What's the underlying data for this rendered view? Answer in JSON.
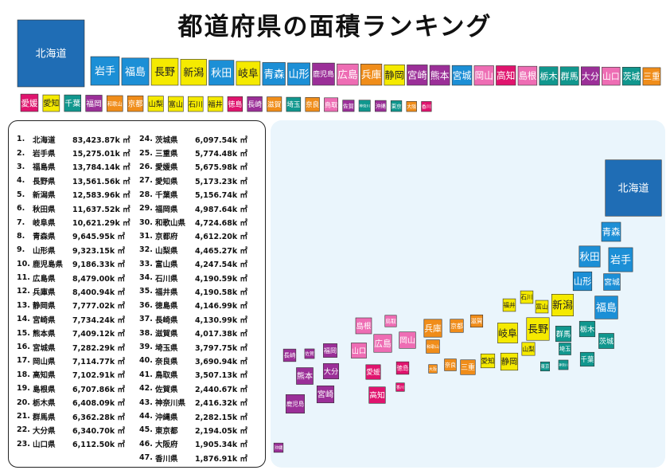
{
  "title": "都道府県の面積ランキング",
  "chart_data": {
    "type": "table",
    "unit": "k ㎡",
    "entries": [
      {
        "rank": 1,
        "rank_label": "1.",
        "name": "北海道",
        "short": "北海道",
        "area_label": "83,423.87k ㎡",
        "value": 83423.87,
        "color": "#1f6db5"
      },
      {
        "rank": 2,
        "rank_label": "2.",
        "name": "岩手県",
        "short": "岩手",
        "area_label": "15,275.01k ㎡",
        "value": 15275.01,
        "color": "#1c8fd6"
      },
      {
        "rank": 3,
        "rank_label": "3.",
        "name": "福島県",
        "short": "福島",
        "area_label": "13,784.14k ㎡",
        "value": 13784.14,
        "color": "#1c8fd6"
      },
      {
        "rank": 4,
        "rank_label": "4.",
        "name": "長野県",
        "short": "長野",
        "area_label": "13,561.56k ㎡",
        "value": 13561.56,
        "color": "#f5ea00"
      },
      {
        "rank": 5,
        "rank_label": "5.",
        "name": "新潟県",
        "short": "新潟",
        "area_label": "12,583.96k ㎡",
        "value": 12583.96,
        "color": "#f5ea00"
      },
      {
        "rank": 6,
        "rank_label": "6.",
        "name": "秋田県",
        "short": "秋田",
        "area_label": "11,637.52k ㎡",
        "value": 11637.52,
        "color": "#1c8fd6"
      },
      {
        "rank": 7,
        "rank_label": "7.",
        "name": "岐阜県",
        "short": "岐阜",
        "area_label": "10,621.29k ㎡",
        "value": 10621.29,
        "color": "#f5ea00"
      },
      {
        "rank": 8,
        "rank_label": "8.",
        "name": "青森県",
        "short": "青森",
        "area_label": "9,645.95k ㎡",
        "value": 9645.95,
        "color": "#1c8fd6"
      },
      {
        "rank": 9,
        "rank_label": "9.",
        "name": "山形県",
        "short": "山形",
        "area_label": "9,323.15k ㎡",
        "value": 9323.15,
        "color": "#1c8fd6"
      },
      {
        "rank": 10,
        "rank_label": "10.",
        "name": "鹿児島県",
        "short": "鹿児島",
        "area_label": "9,186.33k ㎡",
        "value": 9186.33,
        "color": "#9b2f98"
      },
      {
        "rank": 11,
        "rank_label": "11.",
        "name": "広島県",
        "short": "広島",
        "area_label": "8,479.00k ㎡",
        "value": 8479.0,
        "color": "#ee6db4"
      },
      {
        "rank": 12,
        "rank_label": "12.",
        "name": "兵庫県",
        "short": "兵庫",
        "area_label": "8,400.94k ㎡",
        "value": 8400.94,
        "color": "#f08d1a"
      },
      {
        "rank": 13,
        "rank_label": "13.",
        "name": "静岡県",
        "short": "静岡",
        "area_label": "7,777.02k ㎡",
        "value": 7777.02,
        "color": "#f5ea00"
      },
      {
        "rank": 14,
        "rank_label": "14.",
        "name": "宮崎県",
        "short": "宮崎",
        "area_label": "7,734.24k ㎡",
        "value": 7734.24,
        "color": "#9b2f98"
      },
      {
        "rank": 15,
        "rank_label": "15.",
        "name": "熊本県",
        "short": "熊本",
        "area_label": "7,409.12k ㎡",
        "value": 7409.12,
        "color": "#9b2f98"
      },
      {
        "rank": 16,
        "rank_label": "16.",
        "name": "宮城県",
        "short": "宮城",
        "area_label": "7,282.29k ㎡",
        "value": 7282.29,
        "color": "#1c8fd6"
      },
      {
        "rank": 17,
        "rank_label": "17.",
        "name": "岡山県",
        "short": "岡山",
        "area_label": "7,114.77k ㎡",
        "value": 7114.77,
        "color": "#ee6db4"
      },
      {
        "rank": 18,
        "rank_label": "18.",
        "name": "高知県",
        "short": "高知",
        "area_label": "7,102.91k ㎡",
        "value": 7102.91,
        "color": "#e0146e"
      },
      {
        "rank": 19,
        "rank_label": "19.",
        "name": "島根県",
        "short": "島根",
        "area_label": "6,707.86k ㎡",
        "value": 6707.86,
        "color": "#ee6db4"
      },
      {
        "rank": 20,
        "rank_label": "20.",
        "name": "栃木県",
        "short": "栃木",
        "area_label": "6,408.09k ㎡",
        "value": 6408.09,
        "color": "#11978e"
      },
      {
        "rank": 21,
        "rank_label": "21.",
        "name": "群馬県",
        "short": "群馬",
        "area_label": "6,362.28k ㎡",
        "value": 6362.28,
        "color": "#11978e"
      },
      {
        "rank": 22,
        "rank_label": "22.",
        "name": "大分県",
        "short": "大分",
        "area_label": "6,340.70k ㎡",
        "value": 6340.7,
        "color": "#9b2f98"
      },
      {
        "rank": 23,
        "rank_label": "23.",
        "name": "山口県",
        "short": "山口",
        "area_label": "6,112.50k ㎡",
        "value": 6112.5,
        "color": "#ee6db4"
      },
      {
        "rank": 24,
        "rank_label": "24.",
        "name": "茨城県",
        "short": "茨城",
        "area_label": "6,097.54k ㎡",
        "value": 6097.54,
        "color": "#11978e"
      },
      {
        "rank": 25,
        "rank_label": "25.",
        "name": "三重県",
        "short": "三重",
        "area_label": "5,774.48k ㎡",
        "value": 5774.48,
        "color": "#f08d1a"
      },
      {
        "rank": 26,
        "rank_label": "26.",
        "name": "愛媛県",
        "short": "愛媛",
        "area_label": "5,675.98k ㎡",
        "value": 5675.98,
        "color": "#e0146e"
      },
      {
        "rank": 27,
        "rank_label": "27.",
        "name": "愛知県",
        "short": "愛知",
        "area_label": "5,173.23k ㎡",
        "value": 5173.23,
        "color": "#f5ea00"
      },
      {
        "rank": 28,
        "rank_label": "28.",
        "name": "千葉県",
        "short": "千葉",
        "area_label": "5,156.74k ㎡",
        "value": 5156.74,
        "color": "#11978e"
      },
      {
        "rank": 29,
        "rank_label": "29.",
        "name": "福岡県",
        "short": "福岡",
        "area_label": "4,987.64k ㎡",
        "value": 4987.64,
        "color": "#9b2f98"
      },
      {
        "rank": 30,
        "rank_label": "30.",
        "name": "和歌山県",
        "short": "和歌山",
        "area_label": "4,724.68k ㎡",
        "value": 4724.68,
        "color": "#f08d1a"
      },
      {
        "rank": 31,
        "rank_label": "31.",
        "name": "京都府",
        "short": "京都",
        "area_label": "4,612.20k ㎡",
        "value": 4612.2,
        "color": "#f08d1a"
      },
      {
        "rank": 32,
        "rank_label": "32.",
        "name": "山梨県",
        "short": "山梨",
        "area_label": "4,465.27k ㎡",
        "value": 4465.27,
        "color": "#f5ea00"
      },
      {
        "rank": 33,
        "rank_label": "33.",
        "name": "富山県",
        "short": "富山",
        "area_label": "4,247.54k ㎡",
        "value": 4247.54,
        "color": "#f5ea00"
      },
      {
        "rank": 34,
        "rank_label": "34.",
        "name": "石川県",
        "short": "石川",
        "area_label": "4,190.59k ㎡",
        "value": 4190.59,
        "color": "#f5ea00"
      },
      {
        "rank": 35,
        "rank_label": "35.",
        "name": "福井県",
        "short": "福井",
        "area_label": "4,190.58k ㎡",
        "value": 4190.58,
        "color": "#f5ea00"
      },
      {
        "rank": 36,
        "rank_label": "36.",
        "name": "徳島県",
        "short": "徳島",
        "area_label": "4,146.99k ㎡",
        "value": 4146.99,
        "color": "#e0146e"
      },
      {
        "rank": 37,
        "rank_label": "37.",
        "name": "長崎県",
        "short": "長崎",
        "area_label": "4,130.99k ㎡",
        "value": 4130.99,
        "color": "#9b2f98"
      },
      {
        "rank": 38,
        "rank_label": "38.",
        "name": "滋賀県",
        "short": "滋賀",
        "area_label": "4,017.38k ㎡",
        "value": 4017.38,
        "color": "#f08d1a"
      },
      {
        "rank": 39,
        "rank_label": "39.",
        "name": "埼玉県",
        "short": "埼玉",
        "area_label": "3,797.75k ㎡",
        "value": 3797.75,
        "color": "#11978e"
      },
      {
        "rank": 40,
        "rank_label": "40.",
        "name": "奈良県",
        "short": "奈良",
        "area_label": "3,690.94k ㎡",
        "value": 3690.94,
        "color": "#f08d1a"
      },
      {
        "rank": 41,
        "rank_label": "41.",
        "name": "鳥取県",
        "short": "鳥取",
        "area_label": "3,507.13k ㎡",
        "value": 3507.13,
        "color": "#ee6db4"
      },
      {
        "rank": 42,
        "rank_label": "42.",
        "name": "佐賀県",
        "short": "佐賀",
        "area_label": "2,440.67k ㎡",
        "value": 2440.67,
        "color": "#9b2f98"
      },
      {
        "rank": 43,
        "rank_label": "43.",
        "name": "神奈川県",
        "short": "神奈川",
        "area_label": "2,416.32k ㎡",
        "value": 2416.32,
        "color": "#11978e"
      },
      {
        "rank": 44,
        "rank_label": "44.",
        "name": "沖縄県",
        "short": "沖縄",
        "area_label": "2,282.15k ㎡",
        "value": 2282.15,
        "color": "#9b2f98"
      },
      {
        "rank": 45,
        "rank_label": "45.",
        "name": "東京都",
        "short": "東京",
        "area_label": "2,194.05k ㎡",
        "value": 2194.05,
        "color": "#11978e"
      },
      {
        "rank": 46,
        "rank_label": "46.",
        "name": "大阪府",
        "short": "大阪",
        "area_label": "1,905.34k ㎡",
        "value": 1905.34,
        "color": "#f08d1a"
      },
      {
        "rank": 47,
        "rank_label": "47.",
        "name": "香川県",
        "short": "香川",
        "area_label": "1,876.91k ㎡",
        "value": 1876.91,
        "color": "#e0146e"
      }
    ]
  }
}
